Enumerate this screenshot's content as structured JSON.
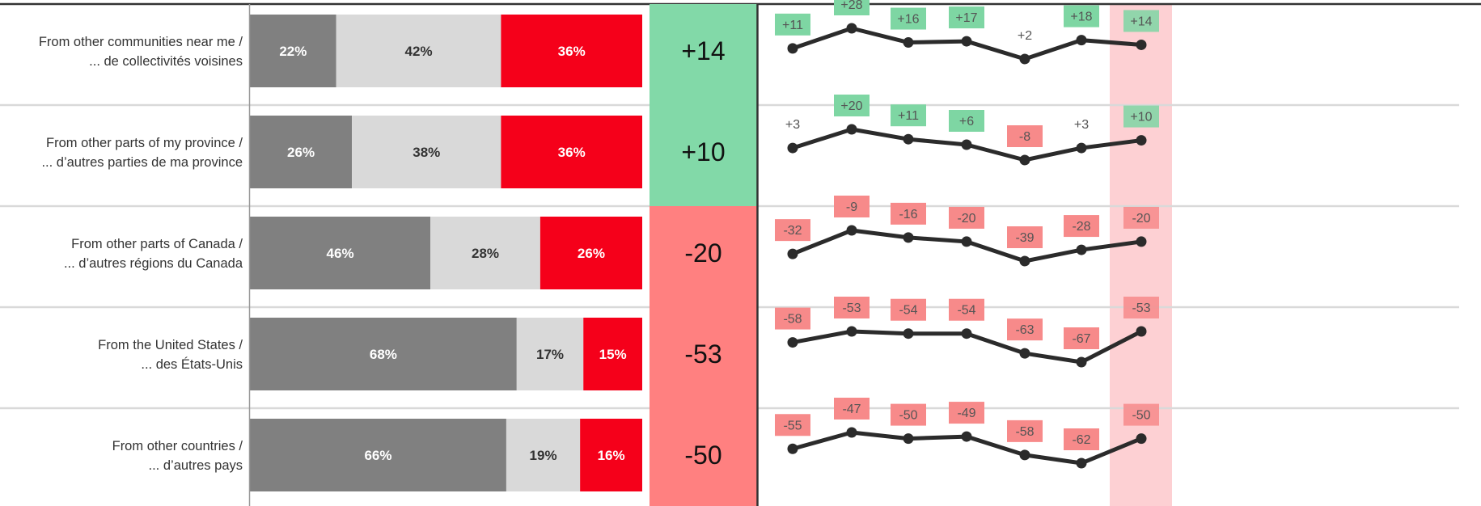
{
  "colors": {
    "left_segment": "#808080",
    "middle_segment": "#d9d9d9",
    "right_segment": "#f5001a",
    "net_positive": "#82d9a8",
    "net_negative": "#ff8080",
    "badge_positive": "#7ed6a3",
    "badge_negative": "#f78a8a",
    "highlight_column": "#fdd0d3",
    "trend_line": "#2b2b2b",
    "separator": "#d9d9d9"
  },
  "chart_data": {
    "type": "bar",
    "orientation": "horizontal",
    "stacked": true,
    "categories": [
      "From other communities near me / ... de collectivités voisines",
      "From other parts of my province / ... d’autres parties de ma province",
      "From other parts of Canada / ... d’autres régions du Canada",
      "From the United States / ... des États-Unis",
      "From other countries / ... d’autres pays"
    ],
    "rows": [
      {
        "label_line1": "From other communities near me /",
        "label_line2": "... de collectivités voisines",
        "segments": [
          22,
          42,
          36
        ],
        "segment_labels": [
          "22%",
          "42%",
          "36%"
        ],
        "net": "+14",
        "net_value": 14,
        "trend": [
          11,
          28,
          16,
          17,
          2,
          18,
          14
        ],
        "trend_labels": [
          "+11",
          "+28",
          "+16",
          "+17",
          "+2",
          "+18",
          "+14"
        ]
      },
      {
        "label_line1": "From other parts of my province /",
        "label_line2": "... d’autres parties de ma province",
        "segments": [
          26,
          38,
          36
        ],
        "segment_labels": [
          "26%",
          "38%",
          "36%"
        ],
        "net": "+10",
        "net_value": 10,
        "trend": [
          3,
          20,
          11,
          6,
          -8,
          3,
          10
        ],
        "trend_labels": [
          "+3",
          "+20",
          "+11",
          "+6",
          "-8",
          "+3",
          "+10"
        ]
      },
      {
        "label_line1": "From other parts of Canada /",
        "label_line2": "... d’autres régions du Canada",
        "segments": [
          46,
          28,
          26
        ],
        "segment_labels": [
          "46%",
          "28%",
          "26%"
        ],
        "net": "-20",
        "net_value": -20,
        "trend": [
          -32,
          -9,
          -16,
          -20,
          -39,
          -28,
          -20
        ],
        "trend_labels": [
          "-32",
          "-9",
          "-16",
          "-20",
          "-39",
          "-28",
          "-20"
        ]
      },
      {
        "label_line1": "From the United States /",
        "label_line2": "... des États-Unis",
        "segments": [
          68,
          17,
          15
        ],
        "segment_labels": [
          "68%",
          "17%",
          "15%"
        ],
        "net": "-53",
        "net_value": -53,
        "trend": [
          -58,
          -53,
          -54,
          -54,
          -63,
          -67,
          -53
        ],
        "trend_labels": [
          "-58",
          "-53",
          "-54",
          "-54",
          "-63",
          "-67",
          "-53"
        ]
      },
      {
        "label_line1": "From other countries /",
        "label_line2": "... d’autres pays",
        "segments": [
          66,
          19,
          16
        ],
        "segment_labels": [
          "66%",
          "19%",
          "16%"
        ],
        "net": "-50",
        "net_value": -50,
        "trend": [
          -55,
          -47,
          -50,
          -49,
          -58,
          -62,
          -50
        ],
        "trend_labels": [
          "-55",
          "-47",
          "-50",
          "-49",
          "-58",
          "-62",
          "-50"
        ]
      }
    ],
    "xlim": [
      0,
      100
    ],
    "highlighted_trend_point": 7
  }
}
